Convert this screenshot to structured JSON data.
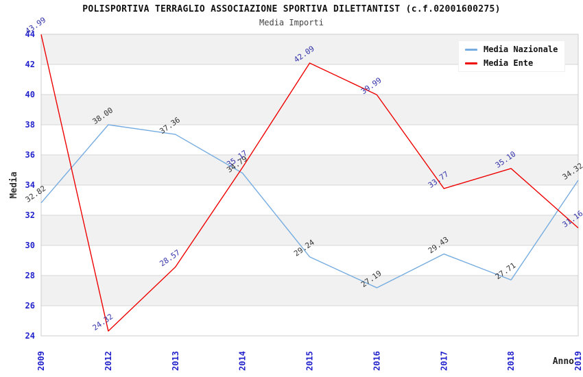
{
  "header": {
    "title": "POLISPORTIVA TERRAGLIO ASSOCIAZIONE SPORTIVA DILETTANTIST (c.f.02001600275)",
    "subtitle": "Media Importi"
  },
  "legend": {
    "items": [
      {
        "label": "Media Nazionale",
        "color": "#76ACE0"
      },
      {
        "label": "Media Ente",
        "color": "#EE0000"
      }
    ]
  },
  "chart_data": {
    "type": "line",
    "title": "POLISPORTIVA TERRAGLIO ASSOCIAZIONE SPORTIVA DILETTANTIST (c.f.02001600275)",
    "subtitle": "Media Importi",
    "xlabel": "Anno",
    "ylabel": "Media",
    "categories": [
      "2009",
      "2012",
      "2013",
      "2014",
      "2015",
      "2016",
      "2017",
      "2018",
      "2019"
    ],
    "series": [
      {
        "name": "Media Nazionale",
        "color": "#76ACE0",
        "label_color": "#333333",
        "values": [
          32.82,
          38.0,
          37.36,
          34.79,
          29.24,
          27.19,
          29.43,
          27.71,
          34.32
        ]
      },
      {
        "name": "Media Ente",
        "color": "#EE0000",
        "label_color": "#3333AA",
        "values": [
          43.99,
          24.32,
          28.57,
          35.17,
          42.09,
          39.99,
          33.77,
          35.1,
          31.16
        ]
      }
    ],
    "ylim": [
      24,
      44
    ],
    "ytick_step": 2,
    "grid": true,
    "legend_position": "top-right",
    "tick_color": "#2222CC",
    "band_colors": [
      "#FFFFFF",
      "#F1F1F1"
    ],
    "gridline_color": "#D6D6D6",
    "border_color": "#CCCCCC"
  }
}
